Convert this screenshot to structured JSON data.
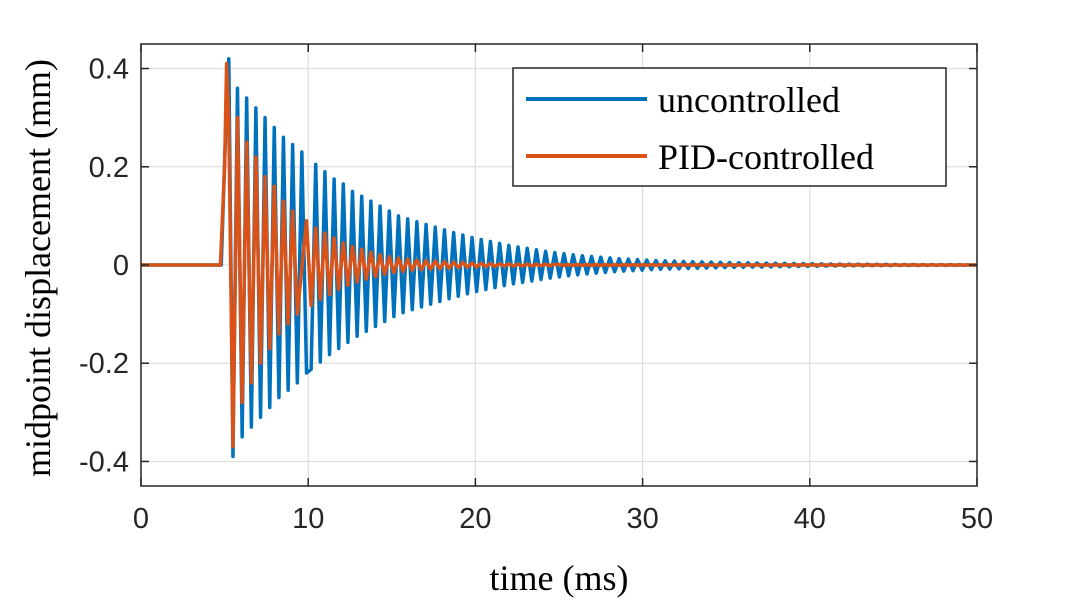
{
  "chart_data": {
    "type": "line",
    "title": "",
    "xlabel": "time (ms)",
    "ylabel": "midpoint displacement (mm)",
    "xlim": [
      0,
      50
    ],
    "ylim": [
      -0.45,
      0.45
    ],
    "xticks": [
      0,
      10,
      20,
      30,
      40,
      50
    ],
    "xtick_labels": [
      "0",
      "10",
      "20",
      "30",
      "40",
      "50"
    ],
    "yticks": [
      -0.4,
      -0.2,
      0,
      0.2,
      0.4
    ],
    "ytick_labels": [
      "-0.4",
      "-0.2",
      "0",
      "0.2",
      "0.4"
    ],
    "grid": true,
    "legend_position": "top-right",
    "series": [
      {
        "name": "uncontrolled",
        "color": "#0072BD",
        "x": [
          0,
          4.8,
          5.0,
          5.25,
          5.5,
          5.77,
          6.05,
          6.32,
          6.6,
          6.87,
          7.15,
          7.42,
          7.7,
          7.97,
          8.25,
          8.52,
          8.8,
          9.07,
          9.35,
          9.62,
          9.9,
          10.45,
          11.0,
          11.55,
          12.1,
          12.65,
          13.2,
          13.75,
          14.3,
          14.85,
          15.4,
          16.5,
          17.6,
          18.7,
          19.8,
          20.9,
          22.0,
          23.1,
          24.2,
          25.3,
          26.4,
          27.5,
          28.6,
          29.7,
          30.8,
          33.0,
          35.2,
          37.4,
          39.6,
          41.8,
          44.0,
          46.2,
          48.4,
          50
        ],
        "y": [
          0,
          0,
          0.21,
          0.42,
          -0.39,
          0.36,
          -0.35,
          0.34,
          -0.33,
          0.32,
          -0.31,
          0.3,
          -0.29,
          0.28,
          -0.27,
          0.26,
          -0.255,
          0.245,
          -0.24,
          0.23,
          -0.22,
          0.205,
          0.19,
          0.175,
          0.165,
          0.15,
          0.14,
          0.13,
          0.12,
          0.11,
          0.1,
          0.088,
          0.077,
          0.066,
          0.056,
          0.048,
          0.04,
          0.034,
          0.028,
          0.023,
          0.019,
          0.016,
          0.013,
          0.011,
          0.009,
          0.007,
          0.005,
          0.004,
          0.003,
          0.002,
          0.0015,
          0.001,
          0.0008,
          0
        ]
      },
      {
        "name": "PID-controlled",
        "color": "#D95319",
        "x": [
          0,
          4.75,
          5.0,
          5.12,
          5.25,
          5.5,
          5.77,
          6.05,
          6.32,
          6.6,
          6.87,
          7.15,
          7.42,
          7.7,
          7.97,
          8.25,
          8.52,
          8.8,
          9.07,
          9.35,
          9.9,
          10.45,
          11.0,
          11.55,
          12.1,
          12.65,
          13.2,
          13.75,
          14.3,
          14.85,
          15.4,
          16.5,
          17.6,
          18.7,
          19.8,
          20.9,
          22.0,
          25.0,
          30.0,
          50
        ],
        "y": [
          0,
          0,
          0.2,
          0.41,
          0.3,
          -0.37,
          0.3,
          -0.28,
          0.25,
          -0.24,
          0.22,
          -0.2,
          0.18,
          -0.17,
          0.16,
          -0.14,
          0.13,
          -0.12,
          0.11,
          -0.1,
          0.09,
          0.075,
          0.065,
          0.055,
          0.045,
          0.038,
          0.032,
          0.026,
          0.021,
          0.017,
          0.014,
          0.01,
          0.008,
          0.006,
          0.004,
          0.003,
          0.002,
          0.001,
          0.0005,
          0
        ]
      }
    ]
  }
}
